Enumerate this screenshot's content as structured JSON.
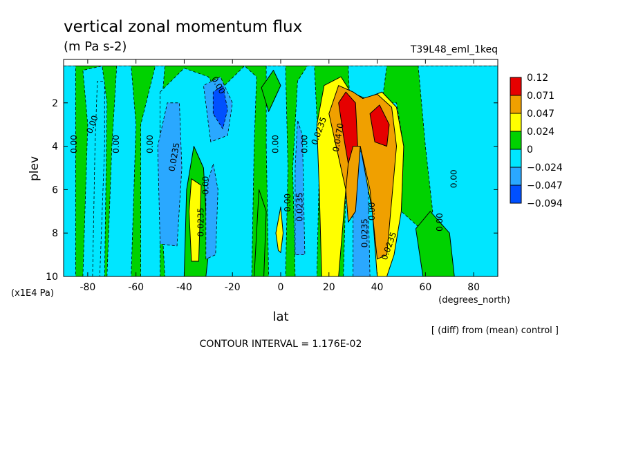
{
  "chart_data": {
    "type": "heatmap",
    "title": "vertical zonal momentum flux",
    "subtitle": "(m Pa s-2)",
    "run_label": "T39L48_eml_1keq",
    "xlabel": "lat",
    "x_units": "(degrees_north)",
    "ylabel": "plev",
    "y_units": "(x1E4 Pa)",
    "xlim": [
      -90,
      90
    ],
    "ylim": [
      10,
      0
    ],
    "x_ticks": [
      -80,
      -60,
      -40,
      -20,
      0,
      20,
      40,
      60,
      80
    ],
    "x_tick_labels": [
      "-80",
      "-60",
      "-40",
      "-20",
      "0",
      "20",
      "40",
      "60",
      "80"
    ],
    "y_ticks": [
      2,
      4,
      6,
      8,
      10
    ],
    "y_tick_labels": [
      "2",
      "4",
      "6",
      "8",
      "10"
    ],
    "colorbar": {
      "labels": [
        "0.12",
        "0.071",
        "0.047",
        "0.024",
        "0",
        "−0.024",
        "−0.047",
        "−0.094"
      ],
      "colors": [
        "#e60000",
        "#f0a000",
        "#ffff00",
        "#00d200",
        "#00e6ff",
        "#2aa8ff",
        "#0050ff"
      ]
    },
    "level_colors": {
      "-3": "#0050ff",
      "-2": "#2aa8ff",
      "-1": "#00e6ff",
      "0": "#00d200",
      "1": "#ffff00",
      "2": "#f0a000",
      "3": "#e60000"
    },
    "contour_interval_text": "CONTOUR INTERVAL = 1.176E-02",
    "note": "[ (diff) from (mean) control ]",
    "contour_labels": [
      {
        "text": "0.00",
        "x": -85.5,
        "y": 3.9,
        "rot": -90
      },
      {
        "text": "0.00",
        "x": -78,
        "y": 3.0,
        "rot": -70
      },
      {
        "text": "0.00",
        "x": -68,
        "y": 3.9,
        "rot": -90
      },
      {
        "text": "0.00",
        "x": -54,
        "y": 3.9,
        "rot": -90
      },
      {
        "text": "0.00",
        "x": -26,
        "y": 1.2,
        "rot": 60
      },
      {
        "text": "0.0235",
        "x": -44,
        "y": 4.5,
        "rot": -80
      },
      {
        "text": "0.00",
        "x": -31,
        "y": 5.8,
        "rot": -90
      },
      {
        "text": "0.0235",
        "x": -33,
        "y": 7.5,
        "rot": -90
      },
      {
        "text": "0.00",
        "x": -2,
        "y": 3.9,
        "rot": -90
      },
      {
        "text": "0.00",
        "x": 10,
        "y": 3.9,
        "rot": -90
      },
      {
        "text": "0.00",
        "x": 3,
        "y": 6.6,
        "rot": -90
      },
      {
        "text": "0.0235",
        "x": 8,
        "y": 6.8,
        "rot": -90
      },
      {
        "text": "0.0235",
        "x": 16,
        "y": 3.3,
        "rot": -70
      },
      {
        "text": "0.0470",
        "x": 24,
        "y": 3.6,
        "rot": -80
      },
      {
        "text": "0.0235",
        "x": 35,
        "y": 8.0,
        "rot": -90
      },
      {
        "text": "0.00",
        "x": 38,
        "y": 7.0,
        "rot": -90
      },
      {
        "text": "0.0235",
        "x": 45,
        "y": 8.6,
        "rot": -70
      },
      {
        "text": "0.00",
        "x": 72,
        "y": 5.5,
        "rot": -90
      },
      {
        "text": "0.00",
        "x": 66,
        "y": 7.5,
        "rot": -90
      }
    ],
    "regions": [
      {
        "level": 0,
        "points": [
          [
            -90,
            10
          ],
          [
            -90,
            0.3
          ],
          [
            90,
            0.3
          ],
          [
            90,
            10
          ]
        ]
      },
      {
        "level": -1,
        "points": [
          [
            -90,
            0.3
          ],
          [
            -85,
            0.3
          ],
          [
            -85,
            10
          ],
          [
            -90,
            10
          ]
        ]
      },
      {
        "level": -1,
        "points": [
          [
            -82,
            10
          ],
          [
            -80,
            3
          ],
          [
            -82,
            0.5
          ],
          [
            -74,
            0.3
          ],
          [
            -72,
            2
          ],
          [
            -73,
            10
          ]
        ]
      },
      {
        "level": -1,
        "points": [
          [
            -78,
            10
          ],
          [
            -77,
            4
          ],
          [
            -76,
            1
          ],
          [
            -73,
            1
          ],
          [
            -73,
            4
          ],
          [
            -75,
            10
          ]
        ]
      },
      {
        "level": -1,
        "points": [
          [
            -72,
            10
          ],
          [
            -70,
            4
          ],
          [
            -68,
            0.3
          ],
          [
            -62,
            0.3
          ],
          [
            -60,
            3
          ],
          [
            -62,
            10
          ]
        ]
      },
      {
        "level": -1,
        "points": [
          [
            -58,
            10
          ],
          [
            -58,
            3
          ],
          [
            -52,
            0.3
          ],
          [
            -48,
            0.3
          ],
          [
            -50,
            3
          ],
          [
            -50,
            10
          ]
        ]
      },
      {
        "level": -1,
        "points": [
          [
            -50,
            1.5
          ],
          [
            -40,
            0.4
          ],
          [
            -30,
            0.8
          ],
          [
            -26,
            1.5
          ],
          [
            -15,
            0.3
          ],
          [
            -10,
            0.8
          ],
          [
            -11,
            4
          ],
          [
            -12,
            10
          ],
          [
            -48,
            10
          ],
          [
            -50,
            6
          ]
        ]
      },
      {
        "level": -1,
        "points": [
          [
            -6,
            4
          ],
          [
            -6,
            0.3
          ],
          [
            2,
            0.3
          ],
          [
            3,
            5
          ],
          [
            2,
            10
          ],
          [
            -5,
            10
          ]
        ]
      },
      {
        "level": -1,
        "points": [
          [
            6,
            10
          ],
          [
            5,
            5
          ],
          [
            7,
            1
          ],
          [
            11,
            0.3
          ],
          [
            14,
            0.3
          ],
          [
            16,
            5
          ],
          [
            15,
            10
          ]
        ]
      },
      {
        "level": -1,
        "points": [
          [
            26,
            10
          ],
          [
            27,
            6
          ],
          [
            29,
            3
          ],
          [
            28,
            0.3
          ],
          [
            44,
            0.3
          ],
          [
            42,
            2
          ],
          [
            48,
            2
          ],
          [
            51,
            4
          ],
          [
            50,
            7
          ],
          [
            60,
            8
          ],
          [
            63,
            7
          ],
          [
            60,
            4
          ],
          [
            57,
            0.3
          ],
          [
            90,
            0.3
          ],
          [
            90,
            10
          ]
        ]
      },
      {
        "level": 0,
        "points": [
          [
            -40,
            10
          ],
          [
            -39,
            6
          ],
          [
            -36,
            4
          ],
          [
            -32,
            5
          ],
          [
            -30,
            9
          ],
          [
            -31,
            10
          ]
        ]
      },
      {
        "level": 0,
        "points": [
          [
            -11,
            10
          ],
          [
            -9,
            6
          ],
          [
            -6,
            7
          ],
          [
            -7,
            10
          ]
        ]
      },
      {
        "level": 0,
        "points": [
          [
            59,
            10
          ],
          [
            56,
            7.8
          ],
          [
            62,
            7
          ],
          [
            70,
            8
          ],
          [
            72,
            10
          ]
        ]
      },
      {
        "level": 0,
        "points": [
          [
            -8,
            1.3
          ],
          [
            -3,
            0.5
          ],
          [
            0,
            1.2
          ],
          [
            -5,
            2.4
          ]
        ]
      },
      {
        "level": -2,
        "points": [
          [
            -50,
            8.5
          ],
          [
            -51,
            4
          ],
          [
            -47,
            2
          ],
          [
            -42,
            2
          ],
          [
            -41,
            5
          ],
          [
            -43,
            8.6
          ]
        ]
      },
      {
        "level": -2,
        "points": [
          [
            -29,
            3.8
          ],
          [
            -32,
            1.2
          ],
          [
            -25,
            0.8
          ],
          [
            -20,
            2
          ],
          [
            -22,
            3.5
          ]
        ]
      },
      {
        "level": -2,
        "points": [
          [
            -31,
            9.2
          ],
          [
            -31,
            6
          ],
          [
            -28,
            4.8
          ],
          [
            -26,
            6
          ],
          [
            -27,
            9
          ]
        ]
      },
      {
        "level": -2,
        "points": [
          [
            6,
            9
          ],
          [
            6,
            5
          ],
          [
            7,
            2.8
          ],
          [
            9,
            3.5
          ],
          [
            10,
            9
          ]
        ]
      },
      {
        "level": -2,
        "points": [
          [
            30,
            10
          ],
          [
            30,
            6
          ],
          [
            33,
            4.2
          ],
          [
            36,
            5
          ],
          [
            37,
            10
          ]
        ]
      },
      {
        "level": -3,
        "points": [
          [
            -28,
            2.5
          ],
          [
            -28,
            1.5
          ],
          [
            -24,
            1.2
          ],
          [
            -22,
            2.3
          ],
          [
            -24,
            3.2
          ]
        ]
      },
      {
        "level": 1,
        "points": [
          [
            -37,
            9.3
          ],
          [
            -38,
            7
          ],
          [
            -37,
            5.5
          ],
          [
            -33,
            5.8
          ],
          [
            -34,
            9.3
          ]
        ]
      },
      {
        "level": 1,
        "points": [
          [
            -1,
            8.8
          ],
          [
            -2,
            8
          ],
          [
            0,
            6.8
          ],
          [
            1,
            8
          ],
          [
            0,
            8.9
          ]
        ]
      },
      {
        "level": 1,
        "points": [
          [
            17,
            10
          ],
          [
            16,
            6
          ],
          [
            15,
            3
          ],
          [
            18,
            1.2
          ],
          [
            25,
            0.8
          ],
          [
            29,
            1.5
          ],
          [
            35,
            1.8
          ],
          [
            42,
            1.5
          ],
          [
            48,
            2.2
          ],
          [
            51,
            4
          ],
          [
            50,
            7
          ],
          [
            47,
            9
          ],
          [
            44,
            10
          ],
          [
            40,
            10
          ],
          [
            38,
            7
          ],
          [
            33,
            4
          ],
          [
            27,
            6
          ],
          [
            24,
            10
          ]
        ]
      },
      {
        "level": 2,
        "points": [
          [
            20,
            2.5
          ],
          [
            24,
            1.2
          ],
          [
            30,
            1.5
          ],
          [
            34,
            1.8
          ],
          [
            40,
            1.6
          ],
          [
            46,
            2.2
          ],
          [
            48,
            4
          ],
          [
            44,
            9
          ],
          [
            40,
            9.2
          ],
          [
            37,
            6
          ],
          [
            33,
            4
          ],
          [
            27,
            6
          ],
          [
            25,
            5
          ]
        ]
      },
      {
        "level": 3,
        "points": [
          [
            24,
            2
          ],
          [
            27,
            1.5
          ],
          [
            31,
            2
          ],
          [
            32,
            4.2
          ],
          [
            28,
            4.8
          ],
          [
            26,
            3.5
          ]
        ]
      },
      {
        "level": 3,
        "points": [
          [
            37,
            2.5
          ],
          [
            41,
            2.1
          ],
          [
            45,
            3
          ],
          [
            44,
            4
          ],
          [
            39,
            3.8
          ]
        ]
      },
      {
        "level": 2,
        "points": [
          [
            28,
            4.8
          ],
          [
            30,
            4
          ],
          [
            33,
            4
          ],
          [
            31,
            7
          ],
          [
            28,
            7.5
          ],
          [
            27,
            6
          ]
        ]
      }
    ]
  }
}
